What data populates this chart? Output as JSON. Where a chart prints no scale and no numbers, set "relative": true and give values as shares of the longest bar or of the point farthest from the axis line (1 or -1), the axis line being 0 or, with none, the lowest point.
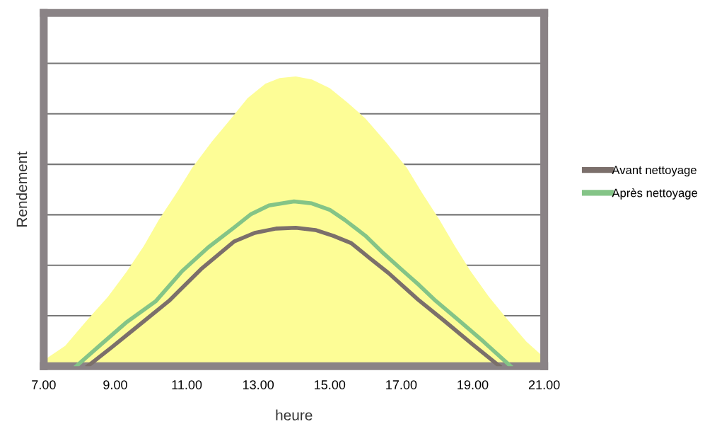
{
  "chart_data": {
    "type": "line",
    "relative": true,
    "xlabel": "heure",
    "ylabel": "Rendement",
    "xlim": [
      7,
      21
    ],
    "xticks": [
      {
        "value": 7,
        "label": "7.00"
      },
      {
        "value": 9,
        "label": "9.00"
      },
      {
        "value": 11,
        "label": "11.00"
      },
      {
        "value": 13,
        "label": "13.00"
      },
      {
        "value": 15,
        "label": "15.00"
      },
      {
        "value": 17,
        "label": "17.00"
      },
      {
        "value": 19,
        "label": "19.00"
      },
      {
        "value": 21,
        "label": "21.00"
      }
    ],
    "grid": "y",
    "legend": "right",
    "series": [
      {
        "type": "area",
        "color": "#fdfd96",
        "x": [
          7,
          7.6,
          8.2,
          8.8,
          9.33,
          9.8,
          10.22,
          10.7,
          11.15,
          11.7,
          12.24,
          12.7,
          13.2,
          13.6,
          14.05,
          14.5,
          15.0,
          15.5,
          16.0,
          16.6,
          17.16,
          17.6,
          18.07,
          18.5,
          18.94,
          19.45,
          20.0,
          20.5,
          21
        ],
        "values": [
          0.02,
          0.07,
          0.157,
          0.24,
          0.328,
          0.415,
          0.505,
          0.595,
          0.684,
          0.775,
          0.855,
          0.925,
          0.975,
          0.995,
          1.0,
          0.99,
          0.96,
          0.91,
          0.855,
          0.77,
          0.684,
          0.595,
          0.505,
          0.415,
          0.328,
          0.24,
          0.157,
          0.085,
          0.03
        ]
      },
      {
        "name": "Avant nettoyage",
        "color": "#7b6f6b",
        "x": [
          8.23,
          8.9,
          9.6,
          10.5,
          11.4,
          12.32,
          12.9,
          13.5,
          14.05,
          14.6,
          15.1,
          15.6,
          16.1,
          16.64,
          17.47,
          18.2,
          19.0,
          19.75
        ],
        "values": [
          0,
          0.065,
          0.135,
          0.225,
          0.335,
          0.43,
          0.46,
          0.475,
          0.478,
          0.47,
          0.45,
          0.425,
          0.375,
          0.322,
          0.23,
          0.157,
          0.075,
          0
        ]
      },
      {
        "name": "Après nettoyage",
        "color": "#84c487",
        "x": [
          7.91,
          8.6,
          9.3,
          10.14,
          10.87,
          11.6,
          12.32,
          12.8,
          13.3,
          14.0,
          14.5,
          15.0,
          15.42,
          16.0,
          16.5,
          17.06,
          17.5,
          17.97,
          18.62,
          19.3,
          20.06
        ],
        "values": [
          0,
          0.075,
          0.15,
          0.225,
          0.328,
          0.41,
          0.478,
          0.525,
          0.555,
          0.569,
          0.562,
          0.54,
          0.505,
          0.45,
          0.39,
          0.328,
          0.28,
          0.225,
          0.157,
          0.085,
          0
        ]
      }
    ]
  }
}
